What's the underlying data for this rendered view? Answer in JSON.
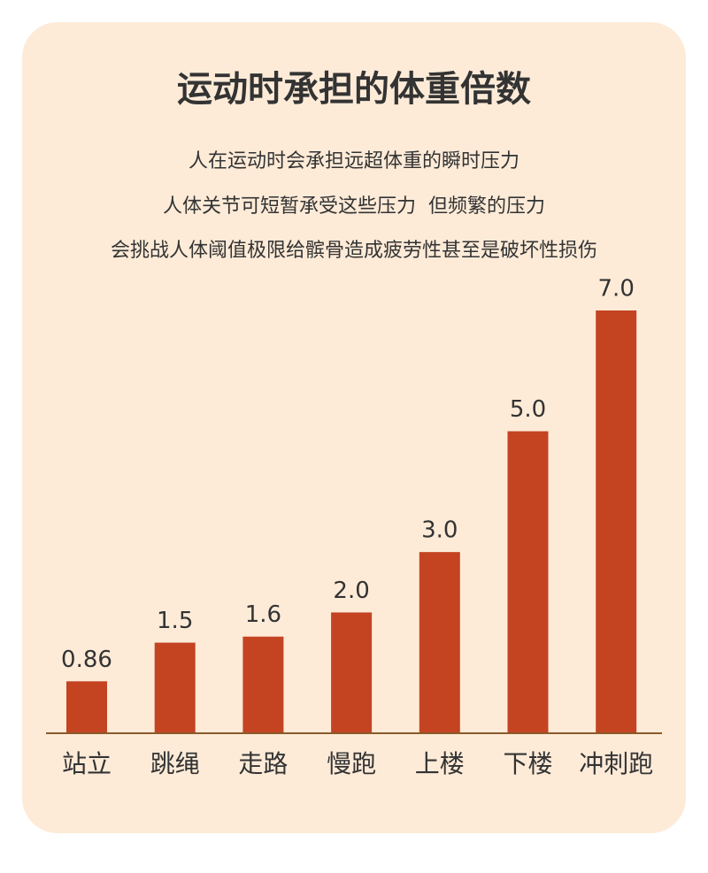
{
  "chart_data": {
    "type": "bar",
    "title": "运动时承担的体重倍数",
    "subtitle": [
      "人在运动时会承担远超体重的瞬时压力",
      "人体关节可短暂承受这些压力  但频繁的压力",
      "会挑战人体阈值极限给髌骨造成疲劳性甚至是破坏性损伤"
    ],
    "categories": [
      "站立",
      "跳绳",
      "走路",
      "慢跑",
      "上楼",
      "下楼",
      "冲刺跑"
    ],
    "values": [
      0.86,
      1.5,
      1.6,
      2,
      3,
      5,
      7
    ],
    "value_labels": [
      "0.86",
      "1.5",
      "1.6",
      "2.0",
      "3.0",
      "5.0",
      "7.0"
    ],
    "color": "#c44422"
  }
}
